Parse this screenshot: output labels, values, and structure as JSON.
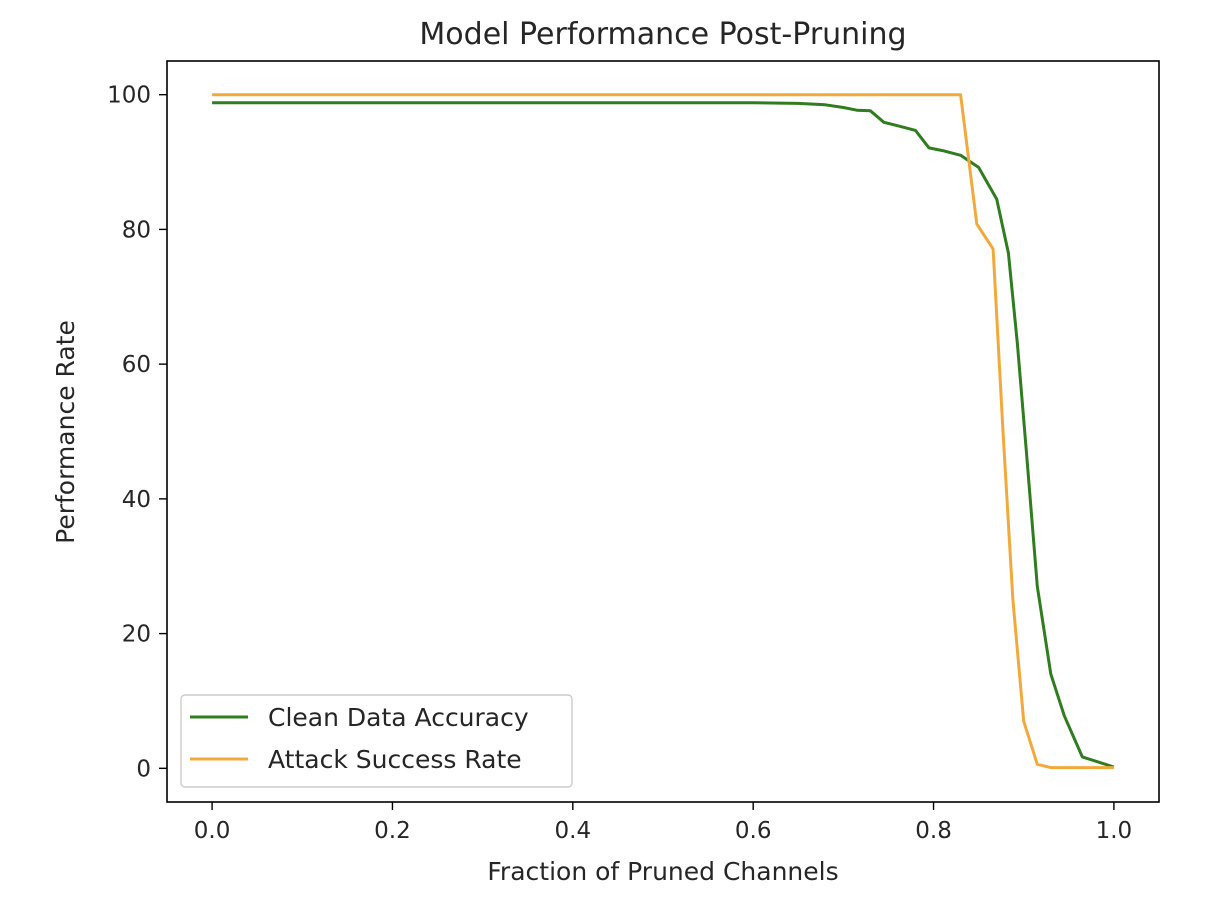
{
  "chart_data": {
    "type": "line",
    "title": "Model Performance Post-Pruning",
    "xlabel": "Fraction of Pruned Channels",
    "ylabel": "Performance Rate",
    "xlim": [
      -0.05,
      1.05
    ],
    "ylim": [
      -5,
      105
    ],
    "xticks": [
      "0.0",
      "0.2",
      "0.4",
      "0.6",
      "0.8",
      "1.0"
    ],
    "yticks": [
      "0",
      "20",
      "40",
      "60",
      "80",
      "100"
    ],
    "grid": false,
    "legend_position": "lower-left",
    "series": [
      {
        "name": "Clean Data Accuracy",
        "color": "#2f7d1e",
        "x": [
          0.0,
          0.1,
          0.2,
          0.3,
          0.4,
          0.5,
          0.6,
          0.65,
          0.68,
          0.7,
          0.715,
          0.73,
          0.745,
          0.76,
          0.78,
          0.795,
          0.81,
          0.83,
          0.85,
          0.87,
          0.883,
          0.893,
          0.903,
          0.915,
          0.93,
          0.945,
          0.965,
          1.0
        ],
        "y": [
          98.8,
          98.8,
          98.8,
          98.8,
          98.8,
          98.8,
          98.8,
          98.7,
          98.5,
          98.1,
          97.7,
          97.6,
          95.9,
          95.4,
          94.7,
          92.1,
          91.7,
          91.0,
          89.2,
          84.5,
          76.5,
          63.0,
          47.0,
          27.0,
          14.0,
          7.8,
          1.7,
          0.2
        ]
      },
      {
        "name": "Attack Success Rate",
        "color": "#f2a93b",
        "x": [
          0.0,
          0.2,
          0.4,
          0.6,
          0.8,
          0.83,
          0.848,
          0.866,
          0.877,
          0.888,
          0.9,
          0.915,
          0.93,
          0.96,
          1.0
        ],
        "y": [
          100,
          100,
          100,
          100,
          100,
          100,
          80.8,
          77.1,
          50.0,
          25.0,
          7.0,
          0.6,
          0.1,
          0.1,
          0.1
        ]
      }
    ]
  }
}
